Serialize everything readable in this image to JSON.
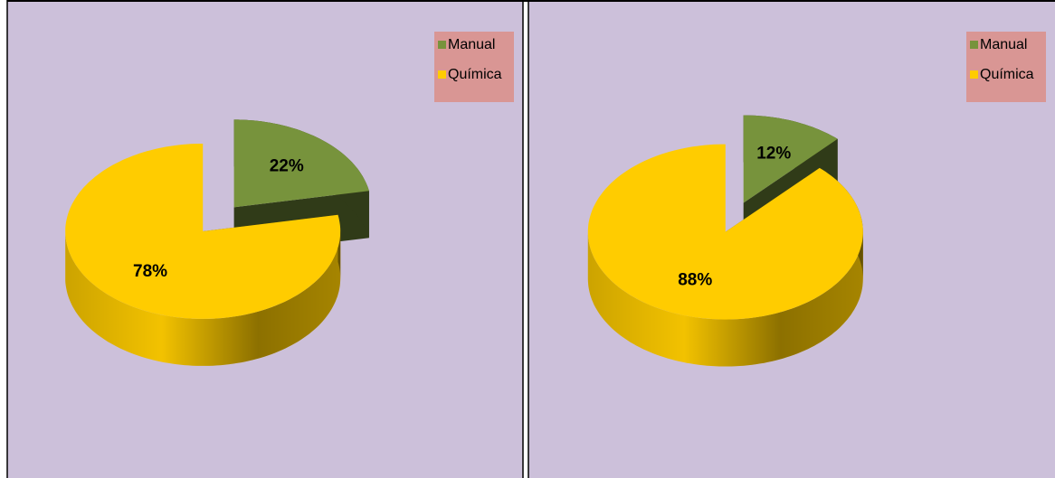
{
  "chart_data": [
    {
      "type": "pie",
      "categories": [
        "Manual",
        "Química"
      ],
      "values": [
        22,
        78
      ],
      "value_labels": [
        "22%",
        "78%"
      ],
      "colors": [
        "#77933c",
        "#ffcc00"
      ],
      "legend": "upper right"
    },
    {
      "type": "pie",
      "categories": [
        "Manual",
        "Química"
      ],
      "values": [
        12,
        88
      ],
      "value_labels": [
        "12%",
        "88%"
      ],
      "colors": [
        "#77933c",
        "#ffcc00"
      ],
      "legend": "upper right"
    }
  ]
}
